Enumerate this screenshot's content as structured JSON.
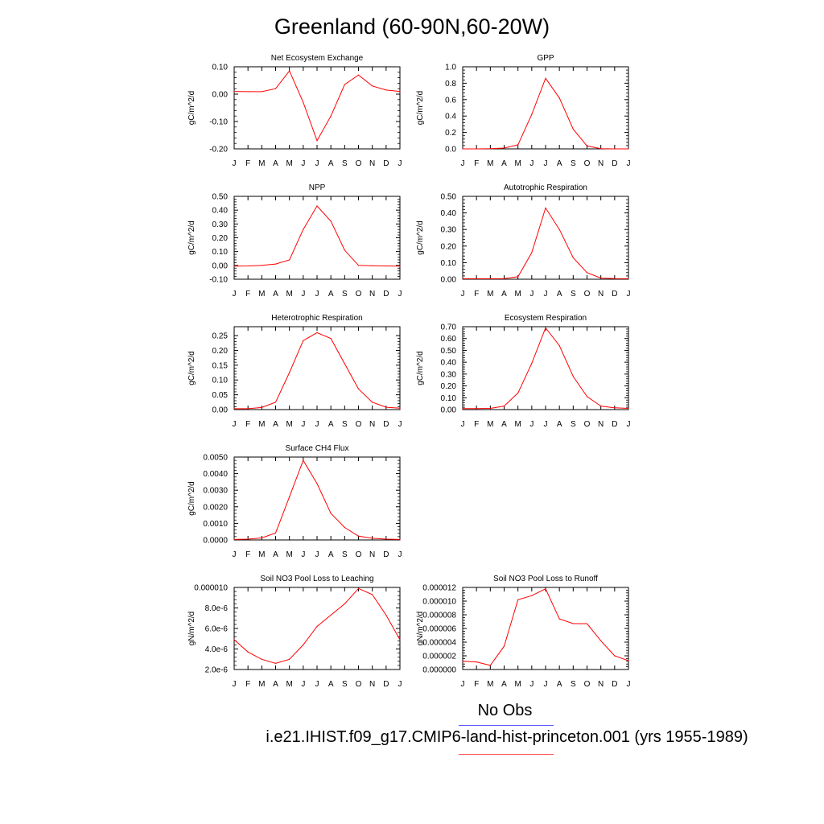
{
  "page": {
    "title": "Greenland (60-90N,60-20W)"
  },
  "legend": {
    "obs_label": "No Obs",
    "obs_color": "#5b5bff",
    "case_label": "i.e21.IHIST.f09_g17.CMIP6-land-hist-princeton.001 (yrs 1955-1989)",
    "case_color": "#ff5b5b"
  },
  "chart_data": [
    {
      "type": "line",
      "title": "Net Ecosystem Exchange",
      "ylabel": "gC/m^2/d",
      "categories": [
        "J",
        "F",
        "M",
        "A",
        "M",
        "J",
        "J",
        "A",
        "S",
        "O",
        "N",
        "D",
        "J"
      ],
      "values": [
        0.01,
        0.009,
        0.009,
        0.02,
        0.085,
        -0.03,
        -0.17,
        -0.08,
        0.035,
        0.07,
        0.03,
        0.015,
        0.01
      ],
      "ylim": [
        -0.2,
        0.1
      ],
      "yticks": [
        "-0.20",
        "-0.10",
        "0.00",
        "0.10"
      ],
      "line_color": "#ff0000"
    },
    {
      "type": "line",
      "title": "GPP",
      "ylabel": "gC/m^2/d",
      "categories": [
        "J",
        "F",
        "M",
        "A",
        "M",
        "J",
        "J",
        "A",
        "S",
        "O",
        "N",
        "D",
        "J"
      ],
      "values": [
        0.0,
        0.0,
        0.002,
        0.01,
        0.05,
        0.42,
        0.86,
        0.62,
        0.24,
        0.035,
        0.003,
        0.0,
        0.0
      ],
      "ylim": [
        0.0,
        1.0
      ],
      "yticks": [
        "0.0",
        "0.2",
        "0.4",
        "0.6",
        "0.8",
        "1.0"
      ],
      "line_color": "#ff0000"
    },
    {
      "type": "line",
      "title": "NPP",
      "ylabel": "gC/m^2/d",
      "categories": [
        "J",
        "F",
        "M",
        "A",
        "M",
        "J",
        "J",
        "A",
        "S",
        "O",
        "N",
        "D",
        "J"
      ],
      "values": [
        -0.005,
        -0.004,
        0.0,
        0.01,
        0.04,
        0.26,
        0.43,
        0.32,
        0.11,
        0.0,
        -0.003,
        -0.004,
        -0.005
      ],
      "ylim": [
        -0.1,
        0.5
      ],
      "yticks": [
        "-0.10",
        "0.00",
        "0.10",
        "0.20",
        "0.30",
        "0.40",
        "0.50"
      ],
      "line_color": "#ff0000"
    },
    {
      "type": "line",
      "title": "Autotrophic Respiration",
      "ylabel": "gC/m^2/d",
      "categories": [
        "J",
        "F",
        "M",
        "A",
        "M",
        "J",
        "J",
        "A",
        "S",
        "O",
        "N",
        "D",
        "J"
      ],
      "values": [
        0.003,
        0.003,
        0.003,
        0.004,
        0.015,
        0.16,
        0.43,
        0.3,
        0.13,
        0.04,
        0.007,
        0.004,
        0.003
      ],
      "ylim": [
        0.0,
        0.5
      ],
      "yticks": [
        "0.00",
        "0.10",
        "0.20",
        "0.30",
        "0.40",
        "0.50"
      ],
      "line_color": "#ff0000"
    },
    {
      "type": "line",
      "title": "Heterotrophic Respiration",
      "ylabel": "gC/m^2/d",
      "categories": [
        "J",
        "F",
        "M",
        "A",
        "M",
        "J",
        "J",
        "A",
        "S",
        "O",
        "N",
        "D",
        "J"
      ],
      "values": [
        0.003,
        0.003,
        0.007,
        0.025,
        0.125,
        0.233,
        0.26,
        0.24,
        0.155,
        0.07,
        0.025,
        0.008,
        0.005
      ],
      "ylim": [
        0.0,
        0.28
      ],
      "yticks": [
        "0.00",
        "0.05",
        "0.10",
        "0.15",
        "0.20",
        "0.25"
      ],
      "line_color": "#ff0000"
    },
    {
      "type": "line",
      "title": "Ecosystem Respiration",
      "ylabel": "gC/m^2/d",
      "categories": [
        "J",
        "F",
        "M",
        "A",
        "M",
        "J",
        "J",
        "A",
        "S",
        "O",
        "N",
        "D",
        "J"
      ],
      "values": [
        0.008,
        0.008,
        0.01,
        0.03,
        0.14,
        0.39,
        0.69,
        0.54,
        0.28,
        0.11,
        0.03,
        0.015,
        0.01
      ],
      "ylim": [
        0.0,
        0.7
      ],
      "yticks": [
        "0.00",
        "0.10",
        "0.20",
        "0.30",
        "0.40",
        "0.50",
        "0.60",
        "0.70"
      ],
      "line_color": "#ff0000"
    },
    {
      "type": "line",
      "title": "Surface CH4 Flux",
      "ylabel": "gC/m^2/d",
      "categories": [
        "J",
        "F",
        "M",
        "A",
        "M",
        "J",
        "J",
        "A",
        "S",
        "O",
        "N",
        "D",
        "J"
      ],
      "values": [
        3e-05,
        5e-05,
        0.00012,
        0.00042,
        0.0026,
        0.0048,
        0.0034,
        0.0016,
        0.00075,
        0.00023,
        0.0001,
        5e-05,
        3e-05
      ],
      "ylim": [
        0.0,
        0.005
      ],
      "yticks": [
        "0.0000",
        "0.0010",
        "0.0020",
        "0.0030",
        "0.0040",
        "0.0050"
      ],
      "line_color": "#ff0000"
    },
    {
      "type": "line",
      "title": "Soil NO3 Pool Loss to Leaching",
      "ylabel": "gN/m^2/d",
      "categories": [
        "J",
        "F",
        "M",
        "A",
        "M",
        "J",
        "J",
        "A",
        "S",
        "O",
        "N",
        "D",
        "J"
      ],
      "values": [
        4.9e-06,
        3.7e-06,
        3e-06,
        2.6e-06,
        3e-06,
        4.4e-06,
        6.2e-06,
        7.3e-06,
        8.4e-06,
        9.9e-06,
        9.3e-06,
        7.3e-06,
        4.9e-06
      ],
      "ylim": [
        2e-06,
        1e-05
      ],
      "yticks": [
        "2.0e-6",
        "4.0e-6",
        "6.0e-6",
        "8.0e-6",
        "0.000010"
      ],
      "line_color": "#ff0000"
    },
    {
      "type": "line",
      "title": "Soil NO3 Pool Loss to Runoff",
      "ylabel": "gN/m^2/d",
      "categories": [
        "J",
        "F",
        "M",
        "A",
        "M",
        "J",
        "J",
        "A",
        "S",
        "O",
        "N",
        "D",
        "J"
      ],
      "values": [
        1.2e-06,
        1.1e-06,
        6e-07,
        3.4e-06,
        1.02e-05,
        1.08e-05,
        1.18e-05,
        7.4e-06,
        6.7e-06,
        6.7e-06,
        4.2e-06,
        2e-06,
        1.3e-06
      ],
      "ylim": [
        0.0,
        1.2e-05
      ],
      "yticks": [
        "0.000000",
        "0.000002",
        "0.000004",
        "0.000006",
        "0.000008",
        "0.000010",
        "0.000012"
      ],
      "line_color": "#ff0000"
    }
  ]
}
